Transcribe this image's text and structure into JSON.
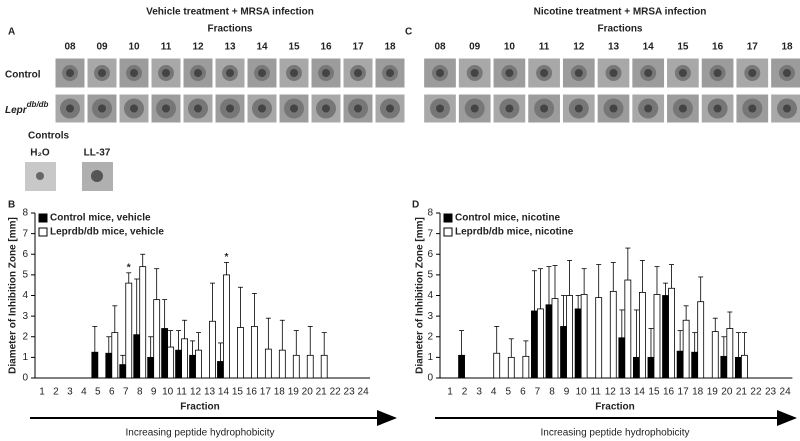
{
  "panels": [
    {
      "label": "A",
      "title": "Vehicle treatment + MRSA infection",
      "fractions_label": "Fractions",
      "fractions": [
        "08",
        "09",
        "10",
        "11",
        "12",
        "13",
        "14",
        "15",
        "16",
        "17",
        "18"
      ],
      "rows": [
        {
          "base": "Control"
        },
        {
          "base": "Lepr",
          "sup": "db/db"
        }
      ],
      "controls": {
        "label": "Controls",
        "items": [
          "H₂O",
          "LL-37"
        ]
      }
    },
    {
      "label": "C",
      "title": "Nicotine treatment + MRSA infection",
      "fractions_label": "Fractions",
      "fractions": [
        "08",
        "09",
        "10",
        "11",
        "12",
        "13",
        "14",
        "15",
        "16",
        "17",
        "18"
      ]
    }
  ],
  "chart_data": [
    {
      "type": "bar",
      "panel_label": "B",
      "ylabel": "Diameter of Inhibition Zone [mm]",
      "xlabel": "Fraction",
      "arrow_label": "Increasing peptide hydrophobicity",
      "categories": [
        "1",
        "2",
        "3",
        "4",
        "5",
        "6",
        "7",
        "8",
        "9",
        "10",
        "11",
        "12",
        "13",
        "14",
        "15",
        "16",
        "17",
        "18",
        "19",
        "20",
        "21",
        "22",
        "23",
        "24"
      ],
      "series": [
        {
          "name": "Control mice, vehicle",
          "color": "#000000",
          "values": [
            null,
            null,
            null,
            null,
            1.25,
            1.2,
            0.65,
            2.1,
            1.0,
            2.4,
            1.35,
            1.1,
            null,
            0.8,
            null,
            null,
            null,
            null,
            null,
            null,
            null,
            null,
            null,
            null
          ],
          "errors": [
            null,
            null,
            null,
            null,
            1.25,
            0.8,
            0.45,
            2.7,
            1.0,
            1.4,
            0.95,
            0.7,
            null,
            0.9,
            null,
            null,
            null,
            null,
            null,
            null,
            null,
            null,
            null,
            null
          ]
        },
        {
          "name": "Leprdb/db mice, vehicle",
          "color": "#ffffff",
          "values": [
            null,
            null,
            null,
            null,
            null,
            2.2,
            4.6,
            5.4,
            3.8,
            1.5,
            1.9,
            1.35,
            2.75,
            5.0,
            2.45,
            2.5,
            1.4,
            1.35,
            1.1,
            1.1,
            1.1,
            null,
            null,
            null
          ],
          "errors": [
            null,
            null,
            null,
            null,
            null,
            1.3,
            0.5,
            0.6,
            1.5,
            0.8,
            0.9,
            0.85,
            1.85,
            0.6,
            1.95,
            1.6,
            1.5,
            1.45,
            1.2,
            1.4,
            1.1,
            null,
            null,
            null
          ]
        }
      ],
      "annotations": [
        {
          "text": "*",
          "category": "7"
        },
        {
          "text": "*",
          "category": "14"
        }
      ],
      "ylim": [
        0,
        8
      ],
      "yticks": [
        0,
        1,
        2,
        3,
        4,
        5,
        6,
        7,
        8
      ]
    },
    {
      "type": "bar",
      "panel_label": "D",
      "ylabel": "Diameter of Inhibition Zone [mm]",
      "xlabel": "Fraction",
      "arrow_label": "Increasing peptide hydrophobicity",
      "categories": [
        "1",
        "2",
        "3",
        "4",
        "5",
        "6",
        "7",
        "8",
        "9",
        "10",
        "11",
        "12",
        "13",
        "14",
        "15",
        "16",
        "17",
        "18",
        "19",
        "20",
        "21",
        "22",
        "23",
        "24"
      ],
      "series": [
        {
          "name": "Control mice, nicotine",
          "color": "#000000",
          "values": [
            null,
            1.1,
            null,
            null,
            null,
            null,
            3.25,
            3.55,
            2.5,
            3.35,
            null,
            null,
            1.95,
            1.0,
            1.0,
            4.0,
            1.3,
            1.25,
            null,
            1.05,
            1.0,
            null,
            null,
            null
          ],
          "errors": [
            null,
            1.2,
            null,
            null,
            null,
            null,
            1.95,
            1.85,
            1.5,
            0.65,
            null,
            null,
            1.35,
            2.3,
            1.4,
            0.6,
            1.0,
            0.95,
            null,
            0.95,
            1.2,
            null,
            null,
            null
          ]
        },
        {
          "name": "Leprdb/db mice, nicotine",
          "color": "#ffffff",
          "values": [
            null,
            null,
            null,
            1.2,
            1.0,
            1.05,
            3.35,
            3.85,
            4.0,
            4.05,
            3.9,
            4.2,
            4.75,
            4.15,
            4.05,
            4.35,
            2.8,
            3.7,
            2.25,
            2.4,
            1.1,
            null,
            null,
            null
          ],
          "errors": [
            null,
            null,
            null,
            1.3,
            0.9,
            0.75,
            1.95,
            1.6,
            1.7,
            1.25,
            1.6,
            1.4,
            1.55,
            1.55,
            1.35,
            1.15,
            0.7,
            1.2,
            0.65,
            0.8,
            1.1,
            null,
            null,
            null
          ]
        }
      ],
      "ylim": [
        0,
        8
      ],
      "yticks": [
        0,
        1,
        2,
        3,
        4,
        5,
        6,
        7,
        8
      ]
    }
  ]
}
